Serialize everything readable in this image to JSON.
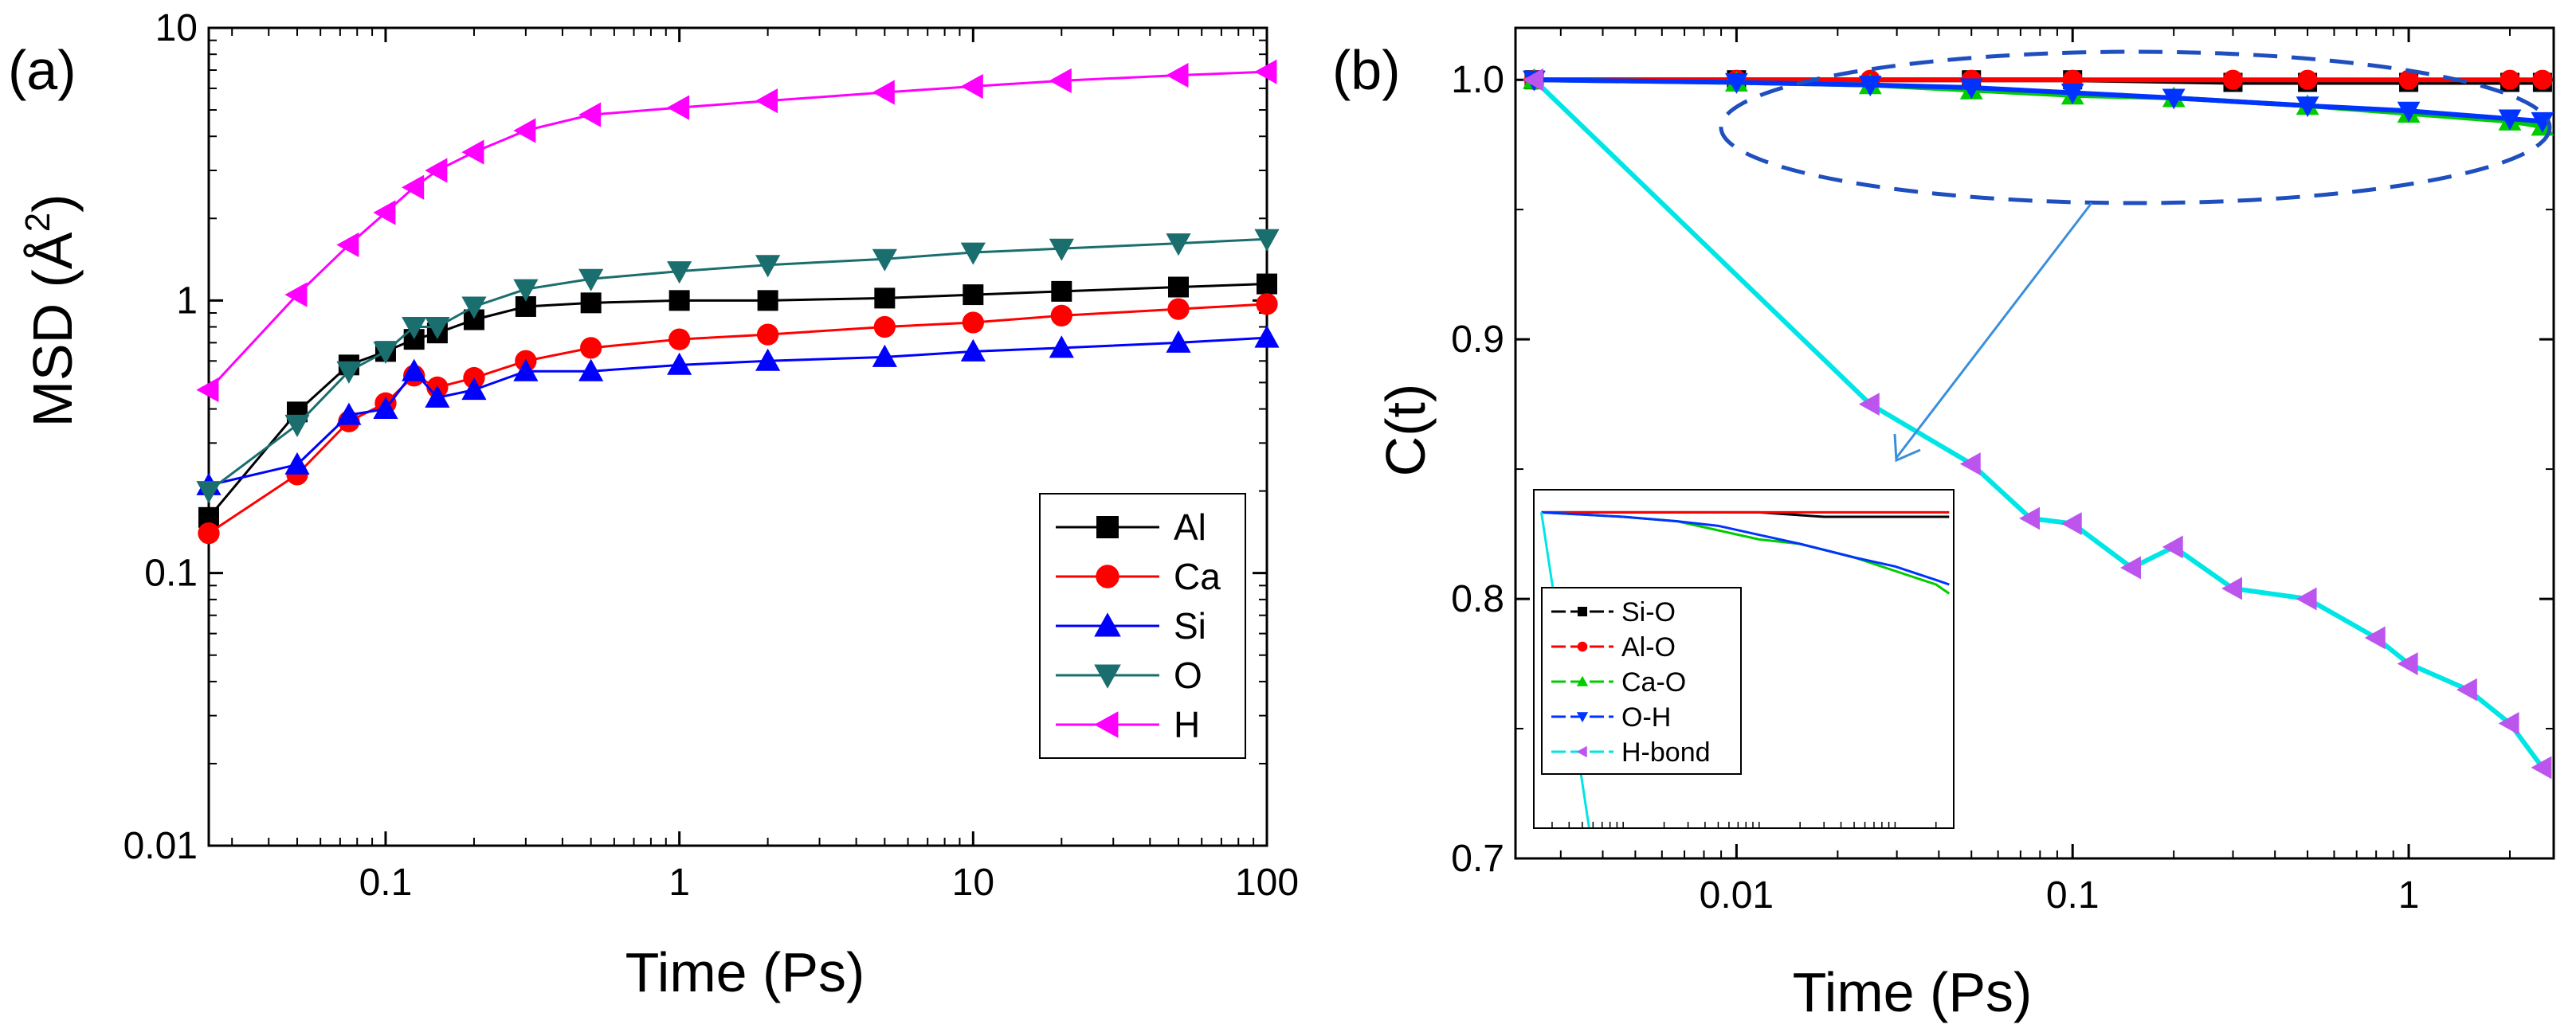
{
  "chart_data": [
    {
      "type": "scatter",
      "panel_label": "(a)",
      "xlabel": "Time (Ps)",
      "ylabel_main": "MSD (Å",
      "ylabel_sup": "2",
      "ylabel_end": ")",
      "xscale": "log",
      "yscale": "log",
      "xlim": [
        0.025,
        100
      ],
      "ylim": [
        0.01,
        10
      ],
      "xticks": [
        0.1,
        1,
        10,
        100
      ],
      "xtick_labels": [
        "0.1",
        "1",
        "10",
        "100"
      ],
      "yticks": [
        0.01,
        0.1,
        1,
        10
      ],
      "ytick_labels": [
        "0.01",
        "0.1",
        "1",
        "10"
      ],
      "legend_position": "lower-right",
      "grid": false,
      "series": [
        {
          "name": "Al",
          "color": "#000000",
          "marker": "square",
          "x": [
            0.025,
            0.05,
            0.075,
            0.1,
            0.125,
            0.15,
            0.2,
            0.3,
            0.5,
            1,
            2,
            5,
            10,
            20,
            50,
            100
          ],
          "y": [
            0.16,
            0.39,
            0.58,
            0.65,
            0.72,
            0.76,
            0.85,
            0.95,
            0.98,
            1.0,
            1.0,
            1.02,
            1.05,
            1.08,
            1.12,
            1.15
          ]
        },
        {
          "name": "Ca",
          "color": "#ff0000",
          "marker": "circle",
          "x": [
            0.025,
            0.05,
            0.075,
            0.1,
            0.125,
            0.15,
            0.2,
            0.3,
            0.5,
            1,
            2,
            5,
            10,
            20,
            50,
            100
          ],
          "y": [
            0.14,
            0.23,
            0.36,
            0.42,
            0.53,
            0.48,
            0.52,
            0.6,
            0.67,
            0.72,
            0.75,
            0.8,
            0.83,
            0.88,
            0.93,
            0.97
          ]
        },
        {
          "name": "Si",
          "color": "#0000ff",
          "marker": "triangle-up",
          "x": [
            0.025,
            0.05,
            0.075,
            0.1,
            0.125,
            0.15,
            0.2,
            0.3,
            0.5,
            1,
            2,
            5,
            10,
            20,
            50,
            100
          ],
          "y": [
            0.21,
            0.25,
            0.38,
            0.4,
            0.55,
            0.44,
            0.47,
            0.55,
            0.55,
            0.58,
            0.6,
            0.62,
            0.65,
            0.67,
            0.7,
            0.73
          ]
        },
        {
          "name": "O",
          "color": "#1a6e6e",
          "marker": "triangle-down",
          "x": [
            0.025,
            0.05,
            0.075,
            0.1,
            0.125,
            0.15,
            0.2,
            0.3,
            0.5,
            1,
            2,
            5,
            10,
            20,
            50,
            100
          ],
          "y": [
            0.2,
            0.35,
            0.55,
            0.65,
            0.8,
            0.8,
            0.95,
            1.1,
            1.2,
            1.28,
            1.35,
            1.42,
            1.5,
            1.55,
            1.62,
            1.68
          ]
        },
        {
          "name": "H",
          "color": "#ff00ff",
          "marker": "triangle-left",
          "x": [
            0.025,
            0.05,
            0.075,
            0.1,
            0.125,
            0.15,
            0.2,
            0.3,
            0.5,
            1,
            2,
            5,
            10,
            20,
            50,
            100
          ],
          "y": [
            0.47,
            1.05,
            1.6,
            2.1,
            2.6,
            3.0,
            3.5,
            4.2,
            4.8,
            5.1,
            5.4,
            5.8,
            6.1,
            6.4,
            6.7,
            6.9
          ]
        }
      ]
    },
    {
      "type": "scatter",
      "panel_label": "(b)",
      "xlabel": "Time (Ps)",
      "ylabel": "C(t)",
      "xscale": "log",
      "yscale": "linear",
      "xlim": [
        0.0022,
        2.7
      ],
      "ylim": [
        0.7,
        1.02
      ],
      "xticks": [
        0.01,
        0.1,
        1
      ],
      "xtick_labels": [
        "0.01",
        "0.1",
        "1"
      ],
      "yticks": [
        0.7,
        0.8,
        0.9,
        1.0
      ],
      "ytick_labels": [
        "0.7",
        "0.8",
        "0.9",
        "1.0"
      ],
      "legend_position": "inset-lower-left",
      "grid": false,
      "series": [
        {
          "name": "Si-O",
          "color": "#000000",
          "marker": "square",
          "x": [
            0.0025,
            0.01,
            0.05,
            0.1,
            0.3,
            0.5,
            1,
            2,
            2.5
          ],
          "y": [
            1.0,
            1.0,
            1.0,
            1.0,
            0.999,
            0.999,
            0.999,
            0.999,
            0.999
          ]
        },
        {
          "name": "Al-O",
          "color": "#ff0000",
          "marker": "circle",
          "x": [
            0.0025,
            0.01,
            0.025,
            0.05,
            0.1,
            0.3,
            0.5,
            1,
            2,
            2.5
          ],
          "y": [
            1.0,
            1.0,
            1.0,
            1.0,
            1.0,
            1.0,
            1.0,
            1.0,
            1.0,
            1.0
          ]
        },
        {
          "name": "Ca-O",
          "color": "#00cc00",
          "marker": "triangle-up",
          "x": [
            0.0025,
            0.01,
            0.025,
            0.05,
            0.1,
            0.2,
            0.5,
            1,
            2,
            2.5
          ],
          "y": [
            1.0,
            0.999,
            0.998,
            0.996,
            0.994,
            0.993,
            0.99,
            0.987,
            0.984,
            0.982
          ]
        },
        {
          "name": "O-H",
          "color": "#0033ff",
          "marker": "triangle-down",
          "x": [
            0.0025,
            0.01,
            0.025,
            0.05,
            0.1,
            0.2,
            0.5,
            1,
            2,
            2.5
          ],
          "y": [
            1.0,
            0.999,
            0.998,
            0.997,
            0.995,
            0.993,
            0.99,
            0.988,
            0.985,
            0.984
          ]
        },
        {
          "name": "H-bond",
          "color": "#00e5e5",
          "marker_color": "#bb55ee",
          "marker": "triangle-left",
          "x": [
            0.0025,
            0.025,
            0.05,
            0.075,
            0.1,
            0.15,
            0.2,
            0.3,
            0.5,
            0.8,
            1,
            1.5,
            2,
            2.5
          ],
          "y": [
            1.0,
            0.875,
            0.852,
            0.831,
            0.829,
            0.812,
            0.82,
            0.804,
            0.8,
            0.785,
            0.775,
            0.765,
            0.752,
            0.735
          ]
        }
      ],
      "inset": {
        "xlim": [
          0.0022,
          2.7
        ],
        "ylim": [
          0.0,
          1.02
        ],
        "series_shown": [
          "Si-O",
          "Al-O",
          "Ca-O",
          "O-H",
          "H-bond"
        ]
      }
    }
  ]
}
